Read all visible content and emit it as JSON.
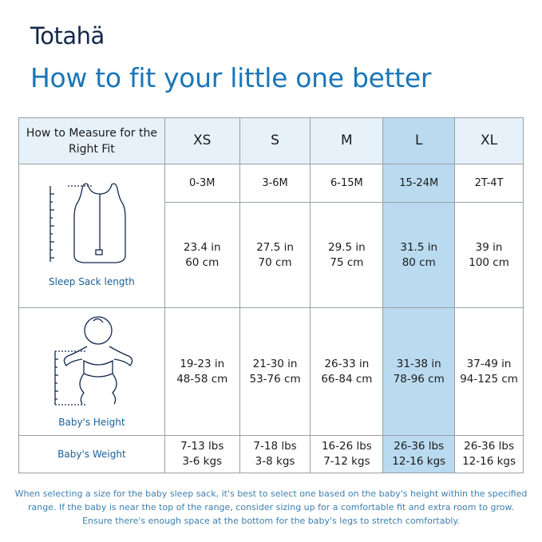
{
  "brand": "Totahä",
  "title": "How to fit your little one better",
  "table": {
    "header": [
      "How to Measure for the Right Fit",
      "XS",
      "S",
      "M",
      "L",
      "XL"
    ],
    "highlighted": "L",
    "highlight_color": "#b9daef",
    "ages": [
      "0-3M",
      "3-6M",
      "6-15M",
      "15-24M",
      "2T-4T"
    ],
    "length_label": "Sleep Sack length",
    "length": [
      [
        "23.4 in",
        "60 cm"
      ],
      [
        "27.5 in",
        "70 cm"
      ],
      [
        "29.5 in",
        "75 cm"
      ],
      [
        "31.5 in",
        "80 cm"
      ],
      [
        "39 in",
        "100 cm"
      ]
    ],
    "height_label": "Baby's Height",
    "height": [
      [
        "19-23 in",
        "48-58 cm"
      ],
      [
        "21-30 in",
        "53-76 cm"
      ],
      [
        "26-33 in",
        "66-84 cm"
      ],
      [
        "31-38 in",
        "78-96 cm"
      ],
      [
        "37-49 in",
        "94-125 cm"
      ]
    ],
    "weight_label": "Baby's Weight",
    "weight": [
      [
        "7-13 lbs",
        "3-6 kgs"
      ],
      [
        "7-18 lbs",
        "3-8 kgs"
      ],
      [
        "16-26 lbs",
        "7-12 kgs"
      ],
      [
        "26-36 lbs",
        "12-16 kgs"
      ],
      [
        "26-36 lbs",
        "12-16 kgs"
      ]
    ]
  },
  "note": [
    "When selecting a size for the baby sleep sack, it's best to select one based on the baby's height within the specified",
    "range. If the baby is near the top of the range, consider sizing up for a comfortable fit and extra room to grow.",
    "Ensure there's enough space at the bottom for the baby's legs to stretch comfortably."
  ]
}
